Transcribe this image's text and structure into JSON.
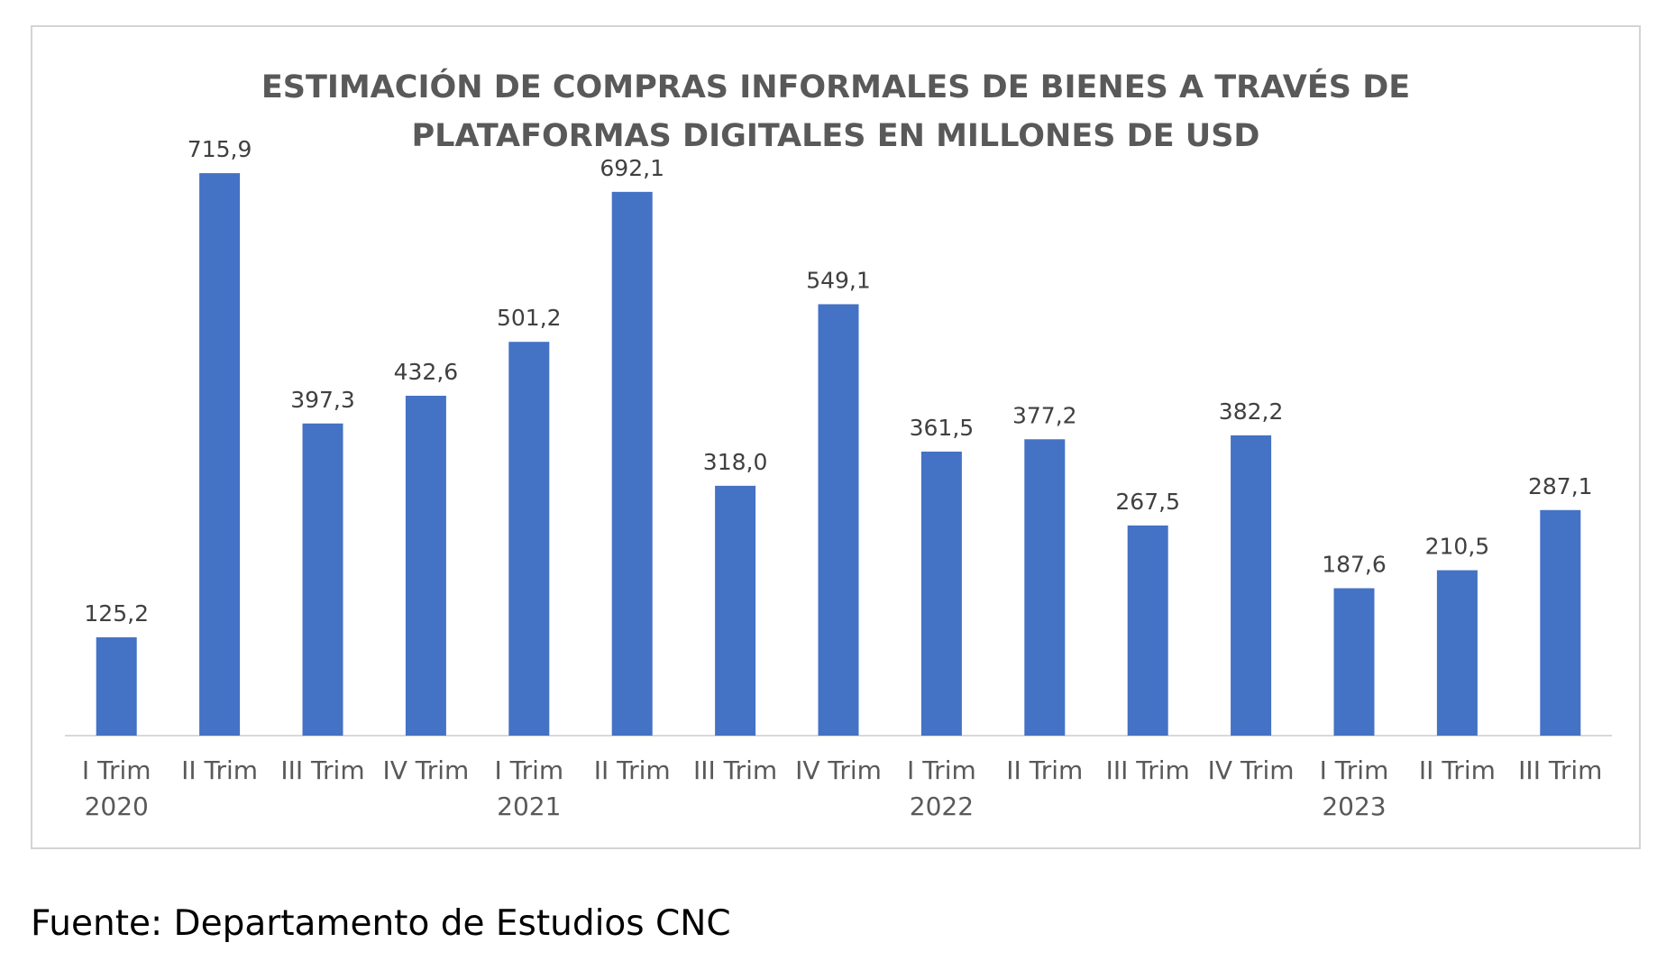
{
  "chart_data": {
    "type": "bar",
    "title": [
      "ESTIMACIÓN DE COMPRAS INFORMALES DE BIENES A TRAVÉS DE",
      "PLATAFORMAS DIGITALES EN MILLONES DE USD"
    ],
    "categories": [
      "I Trim",
      "II Trim",
      "III Trim",
      "IV Trim",
      "I Trim",
      "II Trim",
      "III Trim",
      "IV Trim",
      "I Trim",
      "II Trim",
      "III Trim",
      "IV Trim",
      "I Trim",
      "II Trim",
      "III Trim"
    ],
    "years": [
      {
        "label": "2020",
        "category_index": 0
      },
      {
        "label": "2021",
        "category_index": 4
      },
      {
        "label": "2022",
        "category_index": 8
      },
      {
        "label": "2023",
        "category_index": 12
      }
    ],
    "values": [
      125.2,
      715.9,
      397.3,
      432.6,
      501.2,
      692.1,
      318.0,
      549.1,
      361.5,
      377.2,
      267.5,
      382.2,
      187.6,
      210.5,
      287.1
    ],
    "value_labels": [
      "125,2",
      "715,9",
      "397,3",
      "432,6",
      "501,2",
      "692,1",
      "318,0",
      "549,1",
      "361,5",
      "377,2",
      "267,5",
      "382,2",
      "187,6",
      "210,5",
      "287,1"
    ],
    "ylim": [
      0,
      800
    ],
    "grid": false,
    "legend": "none",
    "bar_color": "#4472c4"
  },
  "footer": {
    "source": "Fuente: Departamento de Estudios CNC"
  }
}
